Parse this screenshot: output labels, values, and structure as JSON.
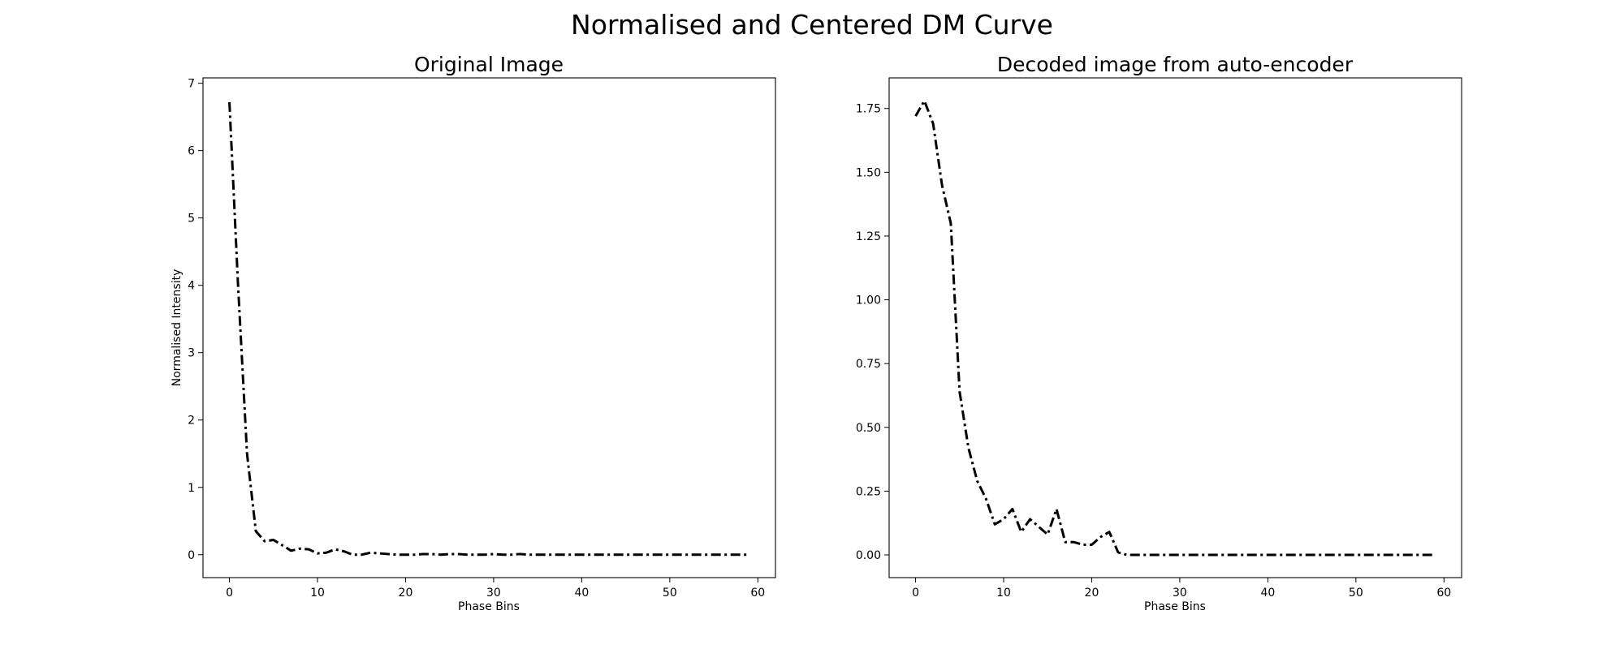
{
  "figure": {
    "suptitle": "Normalised and Centered DM Curve"
  },
  "chart_data": [
    {
      "type": "line",
      "title": "Original Image",
      "xlabel": "Phase Bins",
      "ylabel": "Normalised Intensity",
      "xlim": [
        -3,
        62
      ],
      "ylim": [
        -0.34,
        7.08
      ],
      "xticks": [
        0,
        10,
        20,
        30,
        40,
        50,
        60
      ],
      "yticks": [
        0,
        1,
        2,
        3,
        4,
        5,
        6,
        7
      ],
      "ytick_labels": [
        "0",
        "1",
        "2",
        "3",
        "4",
        "5",
        "6",
        "7"
      ],
      "grid": false,
      "line_style": "dash-dot",
      "line_color": "#000000",
      "series": [
        {
          "x": [
            0,
            1,
            2,
            3,
            4,
            5,
            6,
            7,
            8,
            9,
            10,
            11,
            12,
            13,
            14,
            15,
            16,
            17,
            18,
            19,
            20,
            21,
            22,
            23,
            24,
            25,
            26,
            27,
            28,
            29,
            30,
            31,
            32,
            33,
            34,
            35,
            36,
            37,
            38,
            39,
            40,
            41,
            42,
            43,
            44,
            45,
            46,
            47,
            48,
            49,
            50,
            51,
            52,
            53,
            54,
            55,
            56,
            57,
            58,
            59
          ],
          "y": [
            6.72,
            3.95,
            1.5,
            0.35,
            0.2,
            0.22,
            0.14,
            0.06,
            0.09,
            0.08,
            0.02,
            0.03,
            0.08,
            0.05,
            0.0,
            0.0,
            0.03,
            0.02,
            0.01,
            0.0,
            0.0,
            0.0,
            0.01,
            0.01,
            0.0,
            0.01,
            0.01,
            0.0,
            0.0,
            0.0,
            0.01,
            0.0,
            0.0,
            0.01,
            0.0,
            0.0,
            0.0,
            0.0,
            0.0,
            0.0,
            0.0,
            0.0,
            0.0,
            0.0,
            0.0,
            0.0,
            0.0,
            0.0,
            0.0,
            0.0,
            0.0,
            0.0,
            0.0,
            0.0,
            0.0,
            0.0,
            0.0,
            0.0,
            0.0,
            0.0
          ]
        }
      ]
    },
    {
      "type": "line",
      "title": "Decoded image from auto-encoder",
      "xlabel": "Phase Bins",
      "ylabel": "",
      "xlim": [
        -3,
        62
      ],
      "ylim": [
        -0.089,
        1.87
      ],
      "xticks": [
        0,
        10,
        20,
        30,
        40,
        50,
        60
      ],
      "yticks": [
        0,
        0.25,
        0.5,
        0.75,
        1.0,
        1.25,
        1.5,
        1.75
      ],
      "ytick_labels": [
        "0.00",
        "0.25",
        "0.50",
        "0.75",
        "1.00",
        "1.25",
        "1.50",
        "1.75"
      ],
      "grid": false,
      "line_style": "dash-dot",
      "line_color": "#000000",
      "series": [
        {
          "x": [
            0,
            1,
            2,
            3,
            4,
            5,
            6,
            7,
            8,
            9,
            10,
            11,
            12,
            13,
            14,
            15,
            16,
            17,
            18,
            19,
            20,
            21,
            22,
            23,
            24,
            25,
            26,
            27,
            28,
            29,
            30,
            31,
            32,
            33,
            34,
            35,
            36,
            37,
            38,
            39,
            40,
            41,
            42,
            43,
            44,
            45,
            46,
            47,
            48,
            49,
            50,
            51,
            52,
            53,
            54,
            55,
            56,
            57,
            58,
            59
          ],
          "y": [
            1.72,
            1.78,
            1.69,
            1.45,
            1.3,
            0.64,
            0.42,
            0.29,
            0.22,
            0.12,
            0.14,
            0.18,
            0.09,
            0.14,
            0.11,
            0.08,
            0.18,
            0.05,
            0.05,
            0.04,
            0.04,
            0.07,
            0.09,
            0.01,
            0.0,
            0.0,
            0.0,
            0.0,
            0.0,
            0.0,
            0.0,
            0.0,
            0.0,
            0.0,
            0.0,
            0.0,
            0.0,
            0.0,
            0.0,
            0.0,
            0.0,
            0.0,
            0.0,
            0.0,
            0.0,
            0.0,
            0.0,
            0.0,
            0.0,
            0.0,
            0.0,
            0.0,
            0.0,
            0.0,
            0.0,
            0.0,
            0.0,
            0.0,
            0.0,
            0.0
          ]
        }
      ]
    }
  ]
}
